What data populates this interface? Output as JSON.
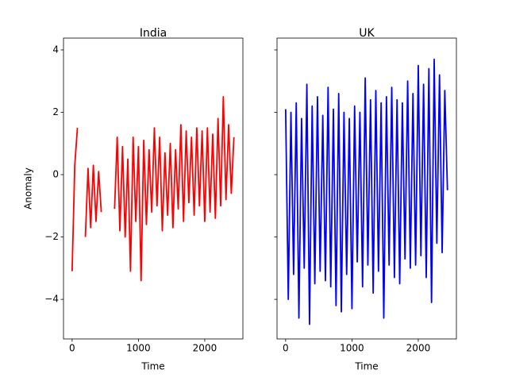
{
  "chart_data": [
    {
      "type": "line",
      "title": "India",
      "xlabel": "Time",
      "ylabel": "Anomaly",
      "x": [
        0,
        40,
        80,
        120,
        160,
        200,
        240,
        280,
        320,
        360,
        400,
        440,
        480,
        520,
        560,
        600,
        640,
        680,
        720,
        760,
        800,
        840,
        880,
        920,
        960,
        1000,
        1040,
        1080,
        1120,
        1160,
        1200,
        1240,
        1280,
        1320,
        1360,
        1400,
        1440,
        1480,
        1520,
        1560,
        1600,
        1640,
        1680,
        1720,
        1760,
        1800,
        1840,
        1880,
        1920,
        1960,
        2000,
        2040,
        2080,
        2120,
        2160,
        2200,
        2240,
        2280,
        2320,
        2360,
        2400,
        2440
      ],
      "color": "#ff0000",
      "values": [
        -3.1,
        0.3,
        1.5,
        null,
        null,
        -2.0,
        0.2,
        -1.7,
        0.3,
        -1.5,
        0.1,
        -1.2,
        null,
        null,
        null,
        null,
        -1.1,
        1.2,
        -1.8,
        0.9,
        -2.0,
        0.5,
        -3.1,
        1.2,
        -1.5,
        0.9,
        -3.4,
        1.1,
        -1.6,
        0.8,
        -1.2,
        1.5,
        -1.0,
        1.2,
        -1.8,
        0.7,
        -1.3,
        1.0,
        -1.7,
        0.8,
        -1.1,
        1.6,
        -1.5,
        1.4,
        -0.9,
        1.2,
        -1.3,
        1.5,
        -1.0,
        1.4,
        -1.5,
        1.5,
        -1.2,
        1.3,
        -1.4,
        1.8,
        -1.0,
        2.5,
        -0.8,
        1.6,
        -0.6,
        1.2
      ],
      "xlim": [
        -130,
        2575
      ],
      "xticks": [
        0,
        1000,
        2000
      ],
      "ylim": [
        -5.27,
        4.38
      ],
      "yticks": [
        {
          "value": -4,
          "label": "−4"
        },
        {
          "value": -2,
          "label": "−2"
        },
        0,
        2,
        4
      ],
      "ytick_labels": true
    },
    {
      "type": "line",
      "title": "UK",
      "xlabel": "Time",
      "x": [
        0,
        40,
        80,
        120,
        160,
        200,
        240,
        280,
        320,
        360,
        400,
        440,
        480,
        520,
        560,
        600,
        640,
        680,
        720,
        760,
        800,
        840,
        880,
        920,
        960,
        1000,
        1040,
        1080,
        1120,
        1160,
        1200,
        1240,
        1280,
        1320,
        1360,
        1400,
        1440,
        1480,
        1520,
        1560,
        1600,
        1640,
        1680,
        1720,
        1760,
        1800,
        1840,
        1880,
        1920,
        1960,
        2000,
        2040,
        2080,
        2120,
        2160,
        2200,
        2240,
        2280,
        2320,
        2360,
        2400,
        2440
      ],
      "color": "#0000ff",
      "values": [
        2.1,
        -4.0,
        2.0,
        -3.2,
        2.3,
        -4.6,
        1.8,
        -3.0,
        2.9,
        -4.8,
        2.2,
        -3.5,
        2.5,
        -3.1,
        1.9,
        -3.4,
        2.8,
        -3.6,
        2.1,
        -4.2,
        2.6,
        -4.4,
        2.0,
        -3.2,
        1.8,
        -4.3,
        2.2,
        -2.8,
        2.0,
        -3.6,
        3.1,
        -2.9,
        2.4,
        -3.8,
        2.7,
        -3.1,
        2.3,
        -4.6,
        2.5,
        -2.9,
        2.8,
        -3.3,
        2.4,
        -3.5,
        2.3,
        -2.7,
        3.0,
        -3.0,
        2.6,
        -2.9,
        3.5,
        -2.6,
        2.9,
        -3.3,
        3.4,
        -4.1,
        3.7,
        -2.2,
        3.2,
        -2.5,
        2.7,
        -0.5
      ],
      "xlim": [
        -130,
        2575
      ],
      "xticks": [
        0,
        1000,
        2000
      ],
      "ylim": [
        -5.27,
        4.38
      ],
      "yticks": [
        -4,
        -2,
        0,
        2,
        4
      ],
      "ytick_labels": false
    }
  ]
}
